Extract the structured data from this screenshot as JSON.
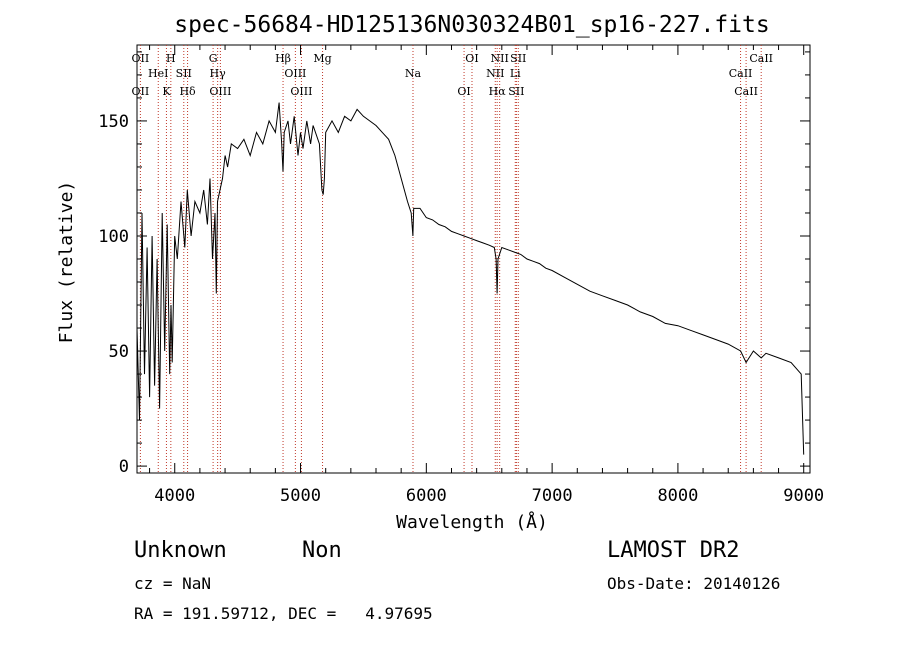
{
  "chart_data": {
    "type": "line",
    "title": "spec-56684-HD125136N030324B01_sp16-227.fits",
    "xlabel": "Wavelength (Å)",
    "ylabel": "Flux (relative)",
    "xlim": [
      3700,
      9050
    ],
    "ylim": [
      -3,
      183
    ],
    "xticks": [
      4000,
      5000,
      6000,
      7000,
      8000,
      9000
    ],
    "yticks": [
      0,
      50,
      100,
      150
    ],
    "grid": false,
    "series": [
      {
        "x": [
          3700,
          3720,
          3740,
          3760,
          3780,
          3800,
          3820,
          3840,
          3860,
          3880,
          3900,
          3920,
          3940,
          3960,
          3970,
          3980,
          4000,
          4020,
          4050,
          4080,
          4100,
          4130,
          4160,
          4200,
          4230,
          4260,
          4280,
          4300,
          4320,
          4330,
          4340,
          4360,
          4380,
          4400,
          4420,
          4450,
          4500,
          4550,
          4600,
          4650,
          4700,
          4750,
          4800,
          4830,
          4850,
          4861,
          4870,
          4900,
          4920,
          4950,
          4980,
          5000,
          5020,
          5050,
          5080,
          5100,
          5150,
          5170,
          5180,
          5190,
          5200,
          5250,
          5300,
          5350,
          5400,
          5450,
          5500,
          5550,
          5600,
          5650,
          5700,
          5750,
          5800,
          5850,
          5880,
          5893,
          5900,
          5950,
          6000,
          6050,
          6100,
          6150,
          6200,
          6250,
          6300,
          6350,
          6400,
          6450,
          6500,
          6540,
          6555,
          6563,
          6570,
          6600,
          6650,
          6700,
          6750,
          6800,
          6850,
          6900,
          6950,
          7000,
          7100,
          7200,
          7300,
          7400,
          7500,
          7600,
          7700,
          7800,
          7900,
          8000,
          8100,
          8200,
          8300,
          8400,
          8498,
          8542,
          8600,
          8662,
          8700,
          8800,
          8900,
          8980,
          9000
        ],
        "y": [
          60,
          20,
          110,
          40,
          95,
          30,
          100,
          35,
          90,
          25,
          110,
          50,
          105,
          40,
          70,
          45,
          100,
          90,
          115,
          95,
          120,
          100,
          115,
          110,
          120,
          105,
          125,
          90,
          110,
          75,
          115,
          120,
          125,
          135,
          130,
          140,
          138,
          142,
          135,
          145,
          140,
          150,
          145,
          158,
          140,
          128,
          145,
          150,
          140,
          152,
          135,
          145,
          138,
          150,
          140,
          148,
          140,
          120,
          118,
          125,
          145,
          150,
          145,
          152,
          150,
          155,
          152,
          150,
          148,
          145,
          142,
          135,
          125,
          115,
          110,
          100,
          112,
          112,
          108,
          107,
          105,
          104,
          102,
          101,
          100,
          99,
          98,
          97,
          96,
          95,
          90,
          75,
          90,
          95,
          94,
          93,
          92,
          90,
          89,
          88,
          86,
          85,
          82,
          79,
          76,
          74,
          72,
          70,
          67,
          65,
          62,
          61,
          59,
          57,
          55,
          53,
          50,
          45,
          50,
          47,
          49,
          47,
          45,
          40,
          5
        ]
      }
    ],
    "lines": [
      {
        "x": 3727,
        "labels": [
          "OII",
          "OII"
        ]
      },
      {
        "x": 3869,
        "labels": [
          "HeI"
        ]
      },
      {
        "x": 3934,
        "labels": [
          "K"
        ]
      },
      {
        "x": 3969,
        "labels": [
          "H"
        ]
      },
      {
        "x": 4072,
        "labels": [
          "SII"
        ]
      },
      {
        "x": 4102,
        "labels": [
          "Hδ"
        ]
      },
      {
        "x": 4305,
        "labels": [
          "G"
        ]
      },
      {
        "x": 4341,
        "labels": [
          "Hγ"
        ]
      },
      {
        "x": 4363,
        "labels": [
          "OIII"
        ]
      },
      {
        "x": 4861,
        "labels": [
          "Hβ"
        ]
      },
      {
        "x": 4959,
        "labels": [
          "OIII"
        ]
      },
      {
        "x": 5007,
        "labels": [
          "OIII"
        ]
      },
      {
        "x": 5175,
        "labels": [
          "Mg"
        ]
      },
      {
        "x": 5894,
        "labels": [
          "Na"
        ]
      },
      {
        "x": 6300,
        "labels": [
          "OI"
        ]
      },
      {
        "x": 6363,
        "labels": [
          "OI"
        ]
      },
      {
        "x": 6548,
        "labels": [
          "NII"
        ]
      },
      {
        "x": 6563,
        "labels": [
          "Hα"
        ]
      },
      {
        "x": 6583,
        "labels": [
          "NII"
        ]
      },
      {
        "x": 6707,
        "labels": [
          "Li"
        ]
      },
      {
        "x": 6716,
        "labels": [
          "SII"
        ]
      },
      {
        "x": 6731,
        "labels": [
          "SII"
        ]
      },
      {
        "x": 8498,
        "labels": [
          "CaII"
        ]
      },
      {
        "x": 8542,
        "labels": [
          "CaII"
        ]
      },
      {
        "x": 8662,
        "labels": [
          "CaII"
        ]
      }
    ]
  },
  "info": {
    "object_name": "Unknown",
    "object_class": "Non",
    "survey": "LAMOST DR2",
    "redshift": "cz = NaN",
    "obs_date": "Obs-Date: 20140126",
    "coords": "RA = 191.59712, DEC =   4.97695"
  }
}
